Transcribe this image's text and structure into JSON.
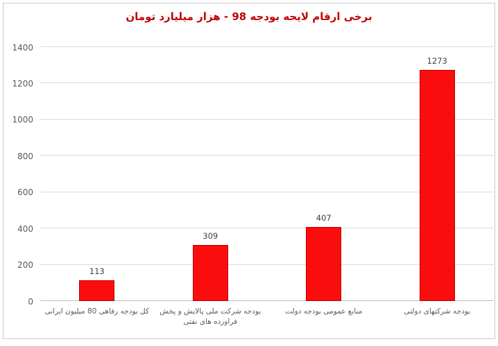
{
  "frame": {
    "background": "#ffffff",
    "border_color": "#c9c9c9"
  },
  "chart_data": {
    "type": "bar",
    "title": "برخی ارقام لایحه بودجه 98 - هزار میلیارد تومان",
    "title_color": "#c00000",
    "categories": [
      "کل بودجه رفاهی 80 میلیون ایرانی",
      "بودجه شرکت ملی پالایش و پخش فراورده های نفتی",
      "منابع عمومی بودجه دولت",
      "بودجه شرکتهای دولتی"
    ],
    "values": [
      113,
      309,
      407,
      1273
    ],
    "data_labels": [
      "113",
      "309",
      "407",
      "1273"
    ],
    "xlabel": "",
    "ylabel": "",
    "ylim": [
      0,
      1400
    ],
    "yticks": [
      0,
      200,
      400,
      600,
      800,
      1000,
      1200,
      1400
    ],
    "grid": true,
    "legend_position": "none",
    "bar_color": "#fb0d0d",
    "bar_border_color": "#c00000",
    "gridline_color": "#d9d9d9",
    "axis_line_color": "#bdbdbd",
    "tick_label_color": "#595959",
    "value_label_color": "#3f3f3f",
    "category_label_color": "#595959"
  }
}
